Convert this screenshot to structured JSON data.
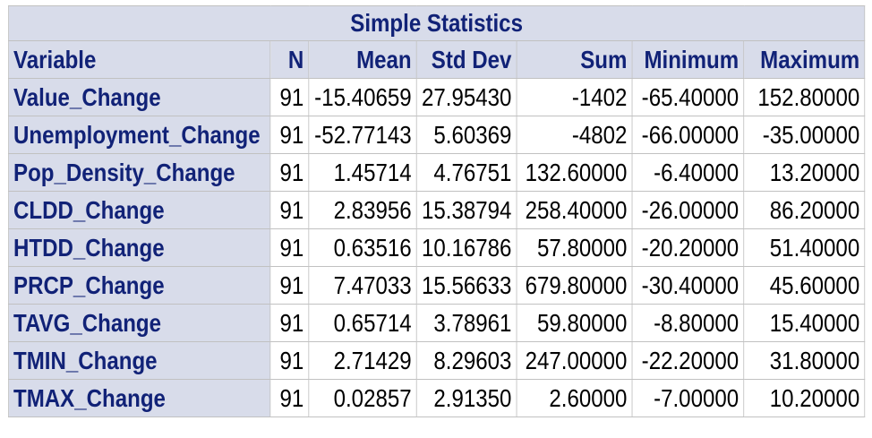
{
  "table": {
    "title": "Simple Statistics",
    "columns": [
      "Variable",
      "N",
      "Mean",
      "Std Dev",
      "Sum",
      "Minimum",
      "Maximum"
    ],
    "rows": [
      {
        "variable": "Value_Change",
        "n": "91",
        "mean": "-15.40659",
        "std_dev": "27.95430",
        "sum": "-1402",
        "minimum": "-65.40000",
        "maximum": "152.80000"
      },
      {
        "variable": "Unemployment_Change",
        "n": "91",
        "mean": "-52.77143",
        "std_dev": "5.60369",
        "sum": "-4802",
        "minimum": "-66.00000",
        "maximum": "-35.00000"
      },
      {
        "variable": "Pop_Density_Change",
        "n": "91",
        "mean": "1.45714",
        "std_dev": "4.76751",
        "sum": "132.60000",
        "minimum": "-6.40000",
        "maximum": "13.20000"
      },
      {
        "variable": "CLDD_Change",
        "n": "91",
        "mean": "2.83956",
        "std_dev": "15.38794",
        "sum": "258.40000",
        "minimum": "-26.00000",
        "maximum": "86.20000"
      },
      {
        "variable": "HTDD_Change",
        "n": "91",
        "mean": "0.63516",
        "std_dev": "10.16786",
        "sum": "57.80000",
        "minimum": "-20.20000",
        "maximum": "51.40000"
      },
      {
        "variable": "PRCP_Change",
        "n": "91",
        "mean": "7.47033",
        "std_dev": "15.56633",
        "sum": "679.80000",
        "minimum": "-30.40000",
        "maximum": "45.60000"
      },
      {
        "variable": "TAVG_Change",
        "n": "91",
        "mean": "0.65714",
        "std_dev": "3.78961",
        "sum": "59.80000",
        "minimum": "-8.80000",
        "maximum": "15.40000"
      },
      {
        "variable": "TMIN_Change",
        "n": "91",
        "mean": "2.71429",
        "std_dev": "8.29603",
        "sum": "247.00000",
        "minimum": "-22.20000",
        "maximum": "31.80000"
      },
      {
        "variable": "TMAX_Change",
        "n": "91",
        "mean": "0.02857",
        "std_dev": "2.91350",
        "sum": "2.60000",
        "minimum": "-7.00000",
        "maximum": "10.20000"
      }
    ]
  },
  "colors": {
    "header_bg": "#d8dcea",
    "header_text": "#112277",
    "border": "#c1c1c1",
    "cell_bg": "#ffffff",
    "cell_text": "#000000"
  }
}
